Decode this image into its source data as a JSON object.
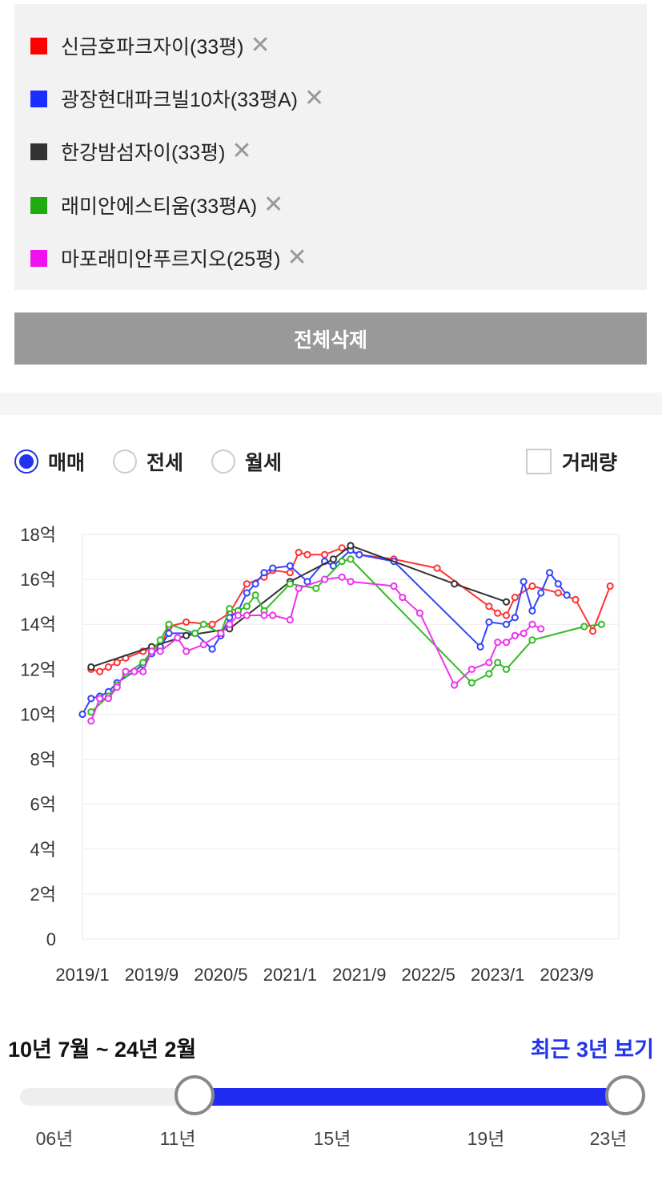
{
  "legend": [
    {
      "label": "신금호파크자이(33평)",
      "color": "#ff0000"
    },
    {
      "label": "광장현대파크빌10차(33평A)",
      "color": "#1a2eff"
    },
    {
      "label": "한강밤섬자이(33평)",
      "color": "#333333"
    },
    {
      "label": "래미안에스티움(33평A)",
      "color": "#22aa11"
    },
    {
      "label": "마포래미안푸르지오(25평)",
      "color": "#ee11ee"
    }
  ],
  "close_glyph": "✕",
  "delete_all_label": "전체삭제",
  "trade_types": [
    {
      "label": "매매",
      "selected": true
    },
    {
      "label": "전세",
      "selected": false
    },
    {
      "label": "월세",
      "selected": false
    }
  ],
  "volume_checkbox": {
    "label": "거래량",
    "checked": false
  },
  "range": {
    "label": "10년 7월 ~ 24년 2월",
    "recent_link": "최근 3년 보기",
    "ticks": [
      "06년",
      "11년",
      "15년",
      "19년",
      "23년"
    ]
  },
  "chart_data": {
    "type": "line",
    "y_unit": "억",
    "ylim": [
      0,
      18
    ],
    "y_ticks": [
      "0",
      "2억",
      "4억",
      "6억",
      "8억",
      "10억",
      "12억",
      "14억",
      "16억",
      "18억"
    ],
    "x_ticks": [
      "2019/1",
      "2019/9",
      "2020/5",
      "2021/1",
      "2021/9",
      "2022/5",
      "2023/1",
      "2023/9"
    ],
    "x_range": [
      "2019/1",
      "2024/3"
    ],
    "grid": true,
    "series": [
      {
        "name": "신금호파크자이(33평)",
        "color": "#ff3333",
        "points": [
          [
            "2019/2",
            12.0
          ],
          [
            "2019/3",
            11.9
          ],
          [
            "2019/4",
            12.1
          ],
          [
            "2019/5",
            12.3
          ],
          [
            "2019/6",
            12.5
          ],
          [
            "2019/8",
            12.8
          ],
          [
            "2019/10",
            13.0
          ],
          [
            "2019/11",
            13.9
          ],
          [
            "2020/1",
            14.1
          ],
          [
            "2020/4",
            14.0
          ],
          [
            "2020/6",
            14.5
          ],
          [
            "2020/8",
            15.8
          ],
          [
            "2020/10",
            16.1
          ],
          [
            "2020/11",
            16.4
          ],
          [
            "2021/1",
            16.3
          ],
          [
            "2021/2",
            17.2
          ],
          [
            "2021/3",
            17.1
          ],
          [
            "2021/5",
            17.1
          ],
          [
            "2021/7",
            17.4
          ],
          [
            "2021/9",
            17.1
          ],
          [
            "2022/1",
            16.9
          ],
          [
            "2022/6",
            16.5
          ],
          [
            "2022/12",
            14.8
          ],
          [
            "2023/1",
            14.5
          ],
          [
            "2023/2",
            14.4
          ],
          [
            "2023/3",
            15.2
          ],
          [
            "2023/5",
            15.7
          ],
          [
            "2023/8",
            15.4
          ],
          [
            "2023/10",
            15.1
          ],
          [
            "2023/12",
            13.7
          ],
          [
            "2024/2",
            15.7
          ]
        ]
      },
      {
        "name": "광장현대파크빌10차(33평A)",
        "color": "#3344ff",
        "points": [
          [
            "2019/1",
            10.0
          ],
          [
            "2019/2",
            10.7
          ],
          [
            "2019/3",
            10.8
          ],
          [
            "2019/4",
            11.0
          ],
          [
            "2019/5",
            11.4
          ],
          [
            "2019/7",
            11.9
          ],
          [
            "2019/8",
            12.2
          ],
          [
            "2019/9",
            12.7
          ],
          [
            "2019/10",
            13.0
          ],
          [
            "2019/11",
            13.6
          ],
          [
            "2020/2",
            13.6
          ],
          [
            "2020/4",
            12.9
          ],
          [
            "2020/5",
            13.5
          ],
          [
            "2020/6",
            14.3
          ],
          [
            "2020/7",
            14.6
          ],
          [
            "2020/8",
            15.4
          ],
          [
            "2020/9",
            15.8
          ],
          [
            "2020/10",
            16.3
          ],
          [
            "2020/11",
            16.5
          ],
          [
            "2021/1",
            16.6
          ],
          [
            "2021/3",
            15.9
          ],
          [
            "2021/5",
            16.8
          ],
          [
            "2021/6",
            16.6
          ],
          [
            "2021/8",
            17.3
          ],
          [
            "2021/9",
            17.1
          ],
          [
            "2022/1",
            16.8
          ],
          [
            "2022/11",
            13.0
          ],
          [
            "2022/12",
            14.1
          ],
          [
            "2023/2",
            14.0
          ],
          [
            "2023/3",
            14.3
          ],
          [
            "2023/4",
            15.9
          ],
          [
            "2023/5",
            14.6
          ],
          [
            "2023/6",
            15.4
          ],
          [
            "2023/7",
            16.3
          ],
          [
            "2023/8",
            15.8
          ],
          [
            "2023/9",
            15.3
          ]
        ]
      },
      {
        "name": "한강밤섬자이(33평)",
        "color": "#333333",
        "points": [
          [
            "2019/2",
            12.1
          ],
          [
            "2019/9",
            13.0
          ],
          [
            "2020/1",
            13.5
          ],
          [
            "2020/6",
            13.8
          ],
          [
            "2021/1",
            15.9
          ],
          [
            "2021/6",
            16.9
          ],
          [
            "2021/8",
            17.5
          ],
          [
            "2022/8",
            15.8
          ],
          [
            "2023/2",
            15.0
          ]
        ]
      },
      {
        "name": "래미안에스티움(33평A)",
        "color": "#33bb22",
        "points": [
          [
            "2019/2",
            10.1
          ],
          [
            "2019/4",
            10.8
          ],
          [
            "2019/5",
            11.3
          ],
          [
            "2019/6",
            11.8
          ],
          [
            "2019/8",
            12.3
          ],
          [
            "2019/10",
            13.3
          ],
          [
            "2019/11",
            14.0
          ],
          [
            "2020/2",
            13.6
          ],
          [
            "2020/3",
            14.0
          ],
          [
            "2020/5",
            13.6
          ],
          [
            "2020/6",
            14.7
          ],
          [
            "2020/7",
            14.6
          ],
          [
            "2020/8",
            14.8
          ],
          [
            "2020/9",
            15.3
          ],
          [
            "2020/10",
            14.6
          ],
          [
            "2021/1",
            15.8
          ],
          [
            "2021/4",
            15.6
          ],
          [
            "2021/7",
            16.8
          ],
          [
            "2021/8",
            16.9
          ],
          [
            "2022/10",
            11.4
          ],
          [
            "2022/12",
            11.8
          ],
          [
            "2023/1",
            12.3
          ],
          [
            "2023/2",
            12.0
          ],
          [
            "2023/5",
            13.3
          ],
          [
            "2023/11",
            13.9
          ],
          [
            "2024/1",
            14.0
          ]
        ]
      },
      {
        "name": "마포래미안푸르지오(25평)",
        "color": "#ee33ee",
        "points": [
          [
            "2019/2",
            9.7
          ],
          [
            "2019/3",
            10.7
          ],
          [
            "2019/4",
            10.7
          ],
          [
            "2019/5",
            11.2
          ],
          [
            "2019/6",
            11.9
          ],
          [
            "2019/7",
            11.9
          ],
          [
            "2019/8",
            11.9
          ],
          [
            "2019/9",
            12.8
          ],
          [
            "2019/10",
            12.8
          ],
          [
            "2019/12",
            13.4
          ],
          [
            "2020/1",
            12.8
          ],
          [
            "2020/3",
            13.1
          ],
          [
            "2020/5",
            13.6
          ],
          [
            "2020/6",
            14.0
          ],
          [
            "2020/7",
            14.4
          ],
          [
            "2020/8",
            14.4
          ],
          [
            "2020/10",
            14.4
          ],
          [
            "2020/11",
            14.4
          ],
          [
            "2021/1",
            14.2
          ],
          [
            "2021/2",
            15.6
          ],
          [
            "2021/5",
            16.0
          ],
          [
            "2021/7",
            16.1
          ],
          [
            "2021/8",
            15.9
          ],
          [
            "2022/1",
            15.7
          ],
          [
            "2022/2",
            15.2
          ],
          [
            "2022/4",
            14.5
          ],
          [
            "2022/8",
            11.3
          ],
          [
            "2022/10",
            12.0
          ],
          [
            "2022/12",
            12.3
          ],
          [
            "2023/1",
            13.2
          ],
          [
            "2023/2",
            13.2
          ],
          [
            "2023/3",
            13.5
          ],
          [
            "2023/4",
            13.6
          ],
          [
            "2023/5",
            14.0
          ],
          [
            "2023/6",
            13.8
          ]
        ]
      }
    ]
  }
}
